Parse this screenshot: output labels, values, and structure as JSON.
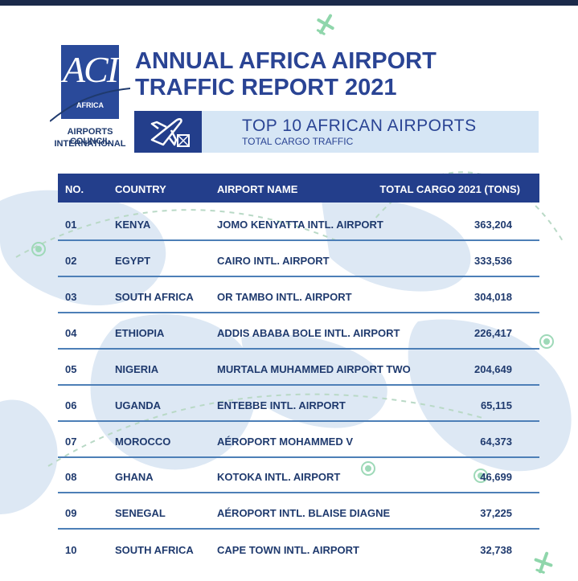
{
  "header": {
    "title_line1": "ANNUAL AFRICA AIRPORT",
    "title_line2": "TRAFFIC REPORT 2021"
  },
  "logo": {
    "mark": "ACI",
    "region": "AFRICA",
    "name_line1": "AIRPORTS COUNCIL",
    "name_line2": "INTERNATIONAL"
  },
  "subheader": {
    "icon": "cargo-plane-icon",
    "title": "TOP 10 AFRICAN AIRPORTS",
    "subtitle": "TOTAL CARGO TRAFFIC"
  },
  "table": {
    "columns": [
      "NO.",
      "COUNTRY",
      "AIRPORT NAME",
      "TOTAL CARGO 2021 (TONS)"
    ],
    "rows": [
      {
        "no": "01",
        "country": "KENYA",
        "airport": "JOMO KENYATTA INTL. AIRPORT",
        "cargo": "363,204"
      },
      {
        "no": "02",
        "country": "EGYPT",
        "airport": "CAIRO INTL. AIRPORT",
        "cargo": "333,536"
      },
      {
        "no": "03",
        "country": "SOUTH AFRICA",
        "airport": "OR TAMBO INTL. AIRPORT",
        "cargo": "304,018"
      },
      {
        "no": "04",
        "country": "ETHIOPIA",
        "airport": "ADDIS ABABA BOLE INTL. AIRPORT",
        "cargo": "226,417"
      },
      {
        "no": "05",
        "country": "NIGERIA",
        "airport": "MURTALA MUHAMMED AIRPORT TWO",
        "cargo": "204,649"
      },
      {
        "no": "06",
        "country": "UGANDA",
        "airport": "ENTEBBE INTL. AIRPORT",
        "cargo": "65,115"
      },
      {
        "no": "07",
        "country": "MOROCCO",
        "airport": "AÉROPORT MOHAMMED V",
        "cargo": "64,373"
      },
      {
        "no": "08",
        "country": "GHANA",
        "airport": "KOTOKA INTL. AIRPORT",
        "cargo": "46,699"
      },
      {
        "no": "09",
        "country": "SENEGAL",
        "airport": "AÉROPORT INTL. BLAISE DIAGNE",
        "cargo": "37,225"
      },
      {
        "no": "10",
        "country": "SOUTH AFRICA",
        "airport": "CAPE TOWN INTL. AIRPORT",
        "cargo": "32,738"
      }
    ]
  },
  "colors": {
    "brand_navy": "#233e8b",
    "title_blue": "#2a4494",
    "map_tint": "#dde8f4",
    "rule_blue": "#4d7fb7",
    "accent_green": "#7ed3a4"
  }
}
